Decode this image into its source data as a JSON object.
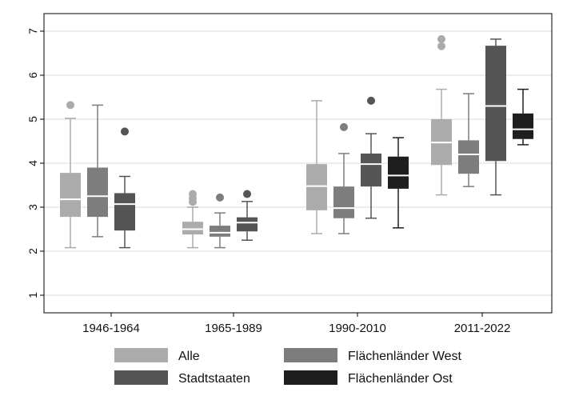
{
  "chart_data": {
    "type": "box",
    "ylim": [
      0.6,
      7.4
    ],
    "yticks": [
      1,
      2,
      3,
      4,
      5,
      6,
      7
    ],
    "grid": true,
    "legend_position": "bottom",
    "categories": [
      "1946-1964",
      "1965-1989",
      "1990-2010",
      "2011-2022"
    ],
    "series": [
      {
        "name": "Alle",
        "color": "#ababab",
        "boxes": [
          {
            "whisker_low": 2.08,
            "q1": 2.78,
            "median": 3.18,
            "q3": 3.78,
            "whisker_high": 5.02,
            "outliers": [
              5.32
            ]
          },
          {
            "whisker_low": 2.08,
            "q1": 2.38,
            "median": 2.5,
            "q3": 2.67,
            "whisker_high": 3.0,
            "outliers": [
              3.12,
              3.2,
              3.3
            ]
          },
          {
            "whisker_low": 2.4,
            "q1": 2.93,
            "median": 3.48,
            "q3": 3.98,
            "whisker_high": 5.42,
            "outliers": []
          },
          {
            "whisker_low": 3.28,
            "q1": 3.96,
            "median": 4.47,
            "q3": 5.0,
            "whisker_high": 5.68,
            "outliers": [
              6.66,
              6.82
            ]
          }
        ]
      },
      {
        "name": "Flächenländer West",
        "color": "#7d7d7d",
        "boxes": [
          {
            "whisker_low": 2.33,
            "q1": 2.78,
            "median": 3.25,
            "q3": 3.9,
            "whisker_high": 5.32,
            "outliers": []
          },
          {
            "whisker_low": 2.08,
            "q1": 2.33,
            "median": 2.42,
            "q3": 2.58,
            "whisker_high": 2.87,
            "outliers": [
              3.22
            ]
          },
          {
            "whisker_low": 2.4,
            "q1": 2.75,
            "median": 2.98,
            "q3": 3.47,
            "whisker_high": 4.22,
            "outliers": [
              4.82
            ]
          },
          {
            "whisker_low": 3.47,
            "q1": 3.76,
            "median": 4.2,
            "q3": 4.52,
            "whisker_high": 5.58,
            "outliers": []
          }
        ]
      },
      {
        "name": "Stadtstaaten",
        "color": "#555555",
        "boxes": [
          {
            "whisker_low": 2.08,
            "q1": 2.47,
            "median": 3.07,
            "q3": 3.32,
            "whisker_high": 3.7,
            "outliers": [
              4.72
            ]
          },
          {
            "whisker_low": 2.25,
            "q1": 2.45,
            "median": 2.65,
            "q3": 2.77,
            "whisker_high": 3.13,
            "outliers": [
              3.3
            ]
          },
          {
            "whisker_low": 2.75,
            "q1": 3.47,
            "median": 3.98,
            "q3": 4.22,
            "whisker_high": 4.67,
            "outliers": [
              5.42
            ]
          },
          {
            "whisker_low": 3.28,
            "q1": 4.05,
            "median": 5.3,
            "q3": 6.67,
            "whisker_high": 6.82,
            "outliers": []
          }
        ]
      },
      {
        "name": "Flächenländer Ost",
        "color": "#1e1e1e",
        "boxes": [
          null,
          null,
          {
            "whisker_low": 2.53,
            "q1": 3.42,
            "median": 3.72,
            "q3": 4.15,
            "whisker_high": 4.58,
            "outliers": []
          },
          {
            "whisker_low": 4.42,
            "q1": 4.55,
            "median": 4.77,
            "q3": 5.13,
            "whisker_high": 5.68,
            "outliers": []
          }
        ]
      }
    ]
  },
  "colors": {
    "median_line": "#ffffff",
    "grid": "#e6e6e6",
    "frame": "#000000"
  }
}
